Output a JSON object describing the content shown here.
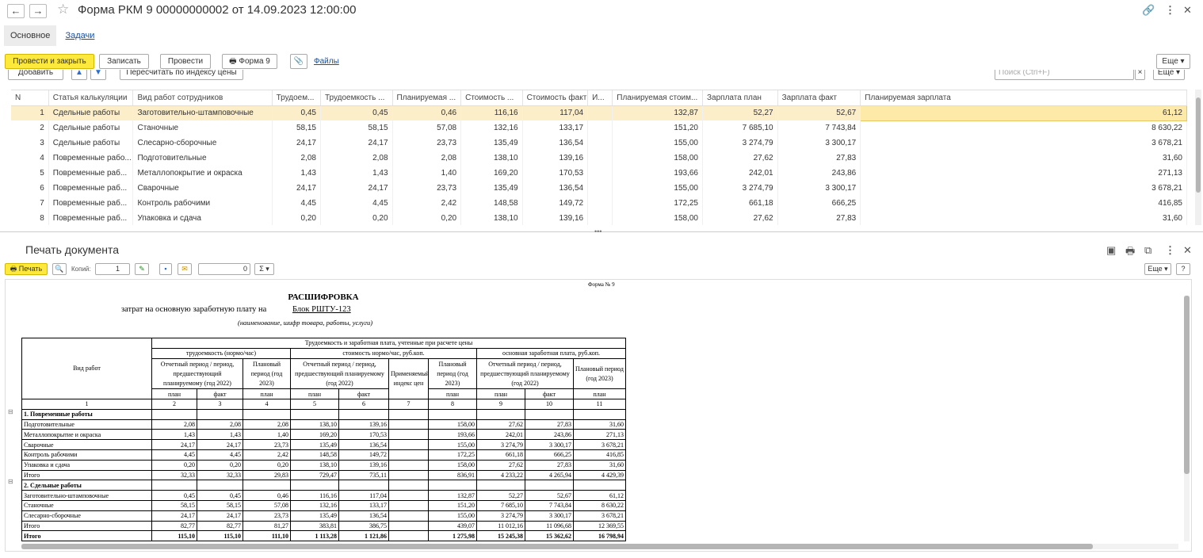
{
  "window": {
    "title": "Форма РКМ 9 00000000002 от 14.09.2023 12:00:00",
    "back": "←",
    "forward": "→"
  },
  "tabs": [
    "Основное",
    "Задачи"
  ],
  "toolbar": {
    "post_close": "Провести и закрыть",
    "save": "Записать",
    "post": "Провести",
    "form9": "Форма 9",
    "files": "Файлы",
    "more": "Еще"
  },
  "subtoolbar": {
    "add": "Добавить",
    "recalc": "Пересчитать по индексу цены",
    "search_placeholder": "Поиск (Ctrl+F)",
    "more": "Еще"
  },
  "grid": {
    "columns": [
      "N",
      "Статья калькуляции",
      "Вид работ сотрудников",
      "Трудоем...",
      "Трудоемкость ...",
      "Планируемая ...",
      "Стоимость ...",
      "Стоимость факт",
      "И...",
      "Планируемая стоим...",
      "Зарплата план",
      "Зарплата факт",
      "Планируемая зарплата"
    ],
    "rows": [
      [
        "1",
        "Сдельные работы",
        "Заготовительно-штамповочные",
        "0,45",
        "0,45",
        "0,46",
        "116,16",
        "117,04",
        "",
        "132,87",
        "52,27",
        "52,67",
        "61,12"
      ],
      [
        "2",
        "Сдельные работы",
        "Станочные",
        "58,15",
        "58,15",
        "57,08",
        "132,16",
        "133,17",
        "",
        "151,20",
        "7 685,10",
        "7 743,84",
        "8 630,22"
      ],
      [
        "3",
        "Сдельные работы",
        "Слесарно-сборочные",
        "24,17",
        "24,17",
        "23,73",
        "135,49",
        "136,54",
        "",
        "155,00",
        "3 274,79",
        "3 300,17",
        "3 678,21"
      ],
      [
        "4",
        "Повременные рабо...",
        "Подготовительные",
        "2,08",
        "2,08",
        "2,08",
        "138,10",
        "139,16",
        "",
        "158,00",
        "27,62",
        "27,83",
        "31,60"
      ],
      [
        "5",
        "Повременные раб...",
        "Металлопокрытие и окраска",
        "1,43",
        "1,43",
        "1,40",
        "169,20",
        "170,53",
        "",
        "193,66",
        "242,01",
        "243,86",
        "271,13"
      ],
      [
        "6",
        "Повременные раб...",
        "Сварочные",
        "24,17",
        "24,17",
        "23,73",
        "135,49",
        "136,54",
        "",
        "155,00",
        "3 274,79",
        "3 300,17",
        "3 678,21"
      ],
      [
        "7",
        "Повременные раб...",
        "Контроль рабочими",
        "4,45",
        "4,45",
        "2,42",
        "148,58",
        "149,72",
        "",
        "172,25",
        "661,18",
        "666,25",
        "416,85"
      ],
      [
        "8",
        "Повременные раб...",
        "Упаковка и сдача",
        "0,20",
        "0,20",
        "0,20",
        "138,10",
        "139,16",
        "",
        "158,00",
        "27,62",
        "27,83",
        "31,60"
      ]
    ]
  },
  "print": {
    "title": "Печать документа",
    "print_btn": "Печать",
    "copies_label": "Копий:",
    "copies": "1",
    "sum_value": "0",
    "sigma": "Σ",
    "more": "Еще",
    "help": "?"
  },
  "doc": {
    "form_no": "Форма № 9",
    "heading": "РАСШИФРОВКА",
    "subheading": "затрат на основную заработную плату на",
    "product": "Блок РШТУ-123",
    "product_note": "(наименование, шифр товара, работы, услуги)",
    "col_vid": "Вид работ",
    "group_main": "Трудоемкость и заработная плата, учтенные при расчете цены",
    "group_labor": "трудоемкость (нормо/час)",
    "group_cost": "стоимость нормо/час, руб.коп.",
    "group_salary": "основная заработная плата, руб.коп.",
    "h_report": "Отчетный период / период, предшествующий планируемому (год 2022)",
    "h_plan": "Плановый период (год 2023)",
    "h_index": "Применяемый индекс цен",
    "plan": "план",
    "fact": "факт",
    "nums": [
      "1",
      "2",
      "3",
      "4",
      "5",
      "6",
      "7",
      "8",
      "9",
      "10",
      "11"
    ],
    "sections": [
      {
        "name": "1. Повременные работы",
        "rows": [
          [
            "Подготовительные",
            "2,08",
            "2,08",
            "2,08",
            "138,10",
            "139,16",
            "",
            "158,00",
            "27,62",
            "27,83",
            "31,60"
          ],
          [
            "Металлопокрытие и окраска",
            "1,43",
            "1,43",
            "1,40",
            "169,20",
            "170,53",
            "",
            "193,66",
            "242,01",
            "243,86",
            "271,13"
          ],
          [
            "Сварочные",
            "24,17",
            "24,17",
            "23,73",
            "135,49",
            "136,54",
            "",
            "155,00",
            "3 274,79",
            "3 300,17",
            "3 678,21"
          ],
          [
            "Контроль рабочими",
            "4,45",
            "4,45",
            "2,42",
            "148,58",
            "149,72",
            "",
            "172,25",
            "661,18",
            "666,25",
            "416,85"
          ],
          [
            "Упаковка и сдача",
            "0,20",
            "0,20",
            "0,20",
            "138,10",
            "139,16",
            "",
            "158,00",
            "27,62",
            "27,83",
            "31,60"
          ],
          [
            "Итого",
            "32,33",
            "32,33",
            "29,83",
            "729,47",
            "735,11",
            "",
            "836,91",
            "4 233,22",
            "4 265,94",
            "4 429,39"
          ]
        ]
      },
      {
        "name": "2. Сдельные работы",
        "rows": [
          [
            "Заготовительно-штамповочные",
            "0,45",
            "0,45",
            "0,46",
            "116,16",
            "117,04",
            "",
            "132,87",
            "52,27",
            "52,67",
            "61,12"
          ],
          [
            "Станочные",
            "58,15",
            "58,15",
            "57,08",
            "132,16",
            "133,17",
            "",
            "151,20",
            "7 685,10",
            "7 743,84",
            "8 630,22"
          ],
          [
            "Слесарно-сборочные",
            "24,17",
            "24,17",
            "23,73",
            "135,49",
            "136,54",
            "",
            "155,00",
            "3 274,79",
            "3 300,17",
            "3 678,21"
          ],
          [
            "Итого",
            "82,77",
            "82,77",
            "81,27",
            "383,81",
            "386,75",
            "",
            "439,07",
            "11 012,16",
            "11 096,68",
            "12 369,55"
          ]
        ]
      }
    ],
    "total": [
      "Итого",
      "115,10",
      "115,10",
      "111,10",
      "1 113,28",
      "1 121,86",
      "",
      "1 275,98",
      "15 245,38",
      "15 362,62",
      "16 798,94"
    ]
  }
}
